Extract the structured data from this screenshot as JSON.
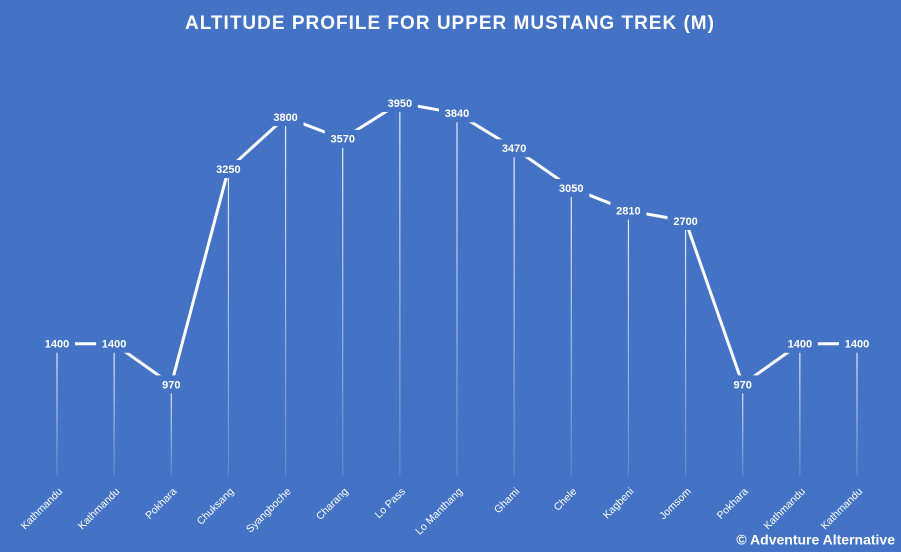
{
  "chart_data": {
    "type": "line",
    "title": "ALTITUDE PROFILE FOR UPPER MUSTANG TREK (M)",
    "categories": [
      "Kathmandu",
      "Kathmandu",
      "Pokhara",
      "Chuksang",
      "Syangboche",
      "Charang",
      "Lo Pass",
      "Lo Manthang",
      "Ghami",
      "Chele",
      "Kagbeni",
      "Jomsom",
      "Pokhara",
      "Kathmandu",
      "Kathmandu"
    ],
    "values": [
      1400,
      1400,
      970,
      3250,
      3800,
      3570,
      3950,
      3840,
      3470,
      3050,
      2810,
      2700,
      970,
      1400,
      1400
    ],
    "color": "#ffffff",
    "background": "#4472c4",
    "ylim": [
      0,
      4500
    ],
    "drop_lines": true,
    "source": "© Adventure Alternative"
  }
}
